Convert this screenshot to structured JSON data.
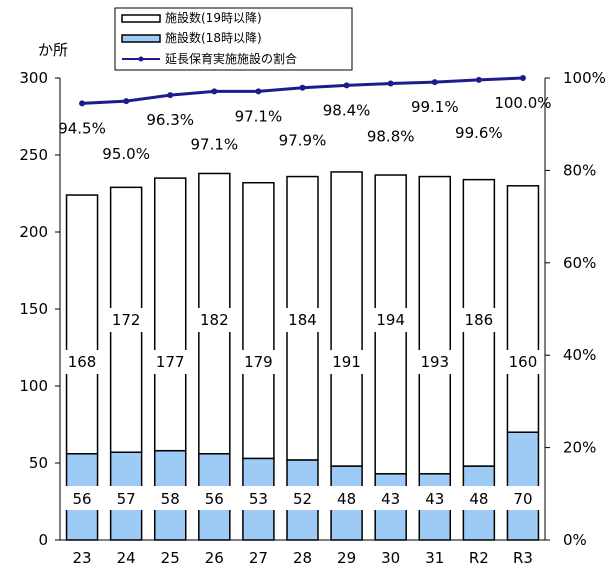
{
  "chart_data": {
    "type": "bar",
    "y_left_unit": "か所",
    "categories": [
      "23",
      "24",
      "25",
      "26",
      "27",
      "28",
      "29",
      "30",
      "31",
      "R2",
      "R3"
    ],
    "series": [
      {
        "name": "施設数(18時以降)",
        "kind": "bar-stack-bottom",
        "color": "#9ecbf5",
        "values": [
          56,
          57,
          58,
          56,
          53,
          52,
          48,
          43,
          43,
          48,
          70
        ]
      },
      {
        "name": "施設数(19時以降)",
        "kind": "bar-stack-top",
        "color": "#ffffff",
        "values": [
          168,
          172,
          177,
          182,
          179,
          184,
          191,
          194,
          193,
          186,
          160
        ]
      },
      {
        "name": "延長保育実施施設の割合",
        "kind": "line",
        "axis": "right",
        "color": "#1c1c8c",
        "values": [
          94.5,
          95.0,
          96.3,
          97.1,
          97.1,
          97.9,
          98.4,
          98.8,
          99.1,
          99.6,
          100.0
        ],
        "labels": [
          "94.5%",
          "95.0%",
          "96.3%",
          "97.1%",
          "97.1%",
          "97.9%",
          "98.4%",
          "98.8%",
          "99.1%",
          "99.6%",
          "100.0%"
        ]
      }
    ],
    "y_left": {
      "min": 0,
      "max": 300,
      "ticks": [
        "0",
        "50",
        "100",
        "150",
        "200",
        "250",
        "300"
      ]
    },
    "y_right": {
      "min": 0,
      "max": 100,
      "ticks": [
        "0%",
        "20%",
        "40%",
        "60%",
        "80%",
        "100%"
      ]
    },
    "legend_position": "top",
    "grid": false
  }
}
